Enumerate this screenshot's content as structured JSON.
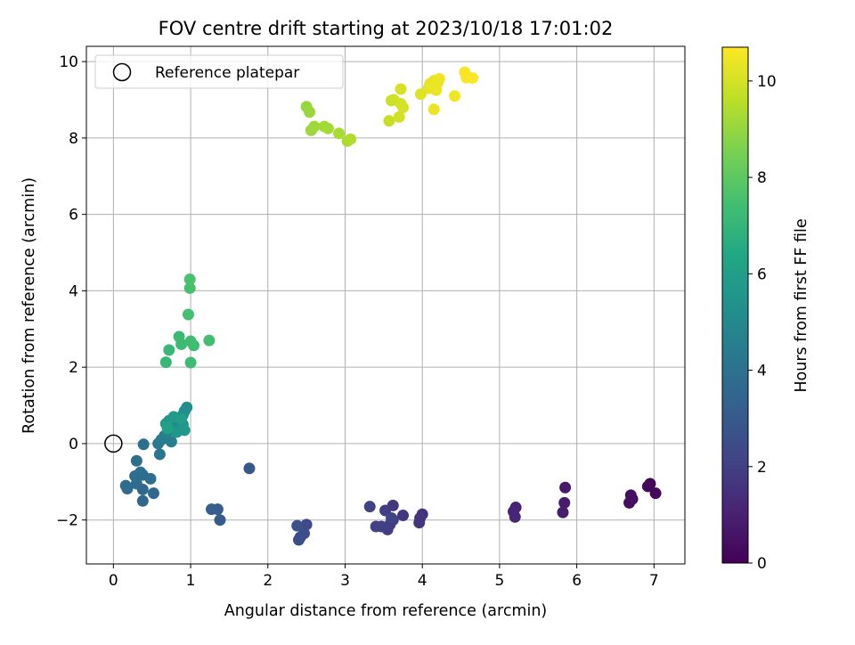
{
  "chart_data": {
    "type": "scatter",
    "title": "FOV centre drift starting at 2023/10/18 17:01:02",
    "xlabel": "Angular distance from reference (arcmin)",
    "ylabel": "Rotation from reference (arcmin)",
    "xlim": [
      -0.35,
      7.4
    ],
    "ylim": [
      -3.15,
      10.4
    ],
    "xticks": [
      0,
      1,
      2,
      3,
      4,
      5,
      6,
      7
    ],
    "yticks": [
      -2,
      0,
      2,
      4,
      6,
      8,
      10
    ],
    "grid": true,
    "legend": {
      "placement": "top-left",
      "entries": [
        {
          "label": "Reference platepar",
          "marker": "open-circle"
        }
      ]
    },
    "reference_point": {
      "x": 0,
      "y": 0
    },
    "colorbar": {
      "label": "Hours from first FF file",
      "colormap": "viridis",
      "range": [
        0,
        10.7
      ],
      "ticks": [
        0,
        2,
        4,
        6,
        8,
        10
      ]
    },
    "points": [
      {
        "x": 6.95,
        "y": -1.05,
        "t": 0.1
      },
      {
        "x": 7.02,
        "y": -1.3,
        "t": 0.2
      },
      {
        "x": 6.92,
        "y": -1.12,
        "t": 0.25
      },
      {
        "x": 6.72,
        "y": -1.45,
        "t": 0.35
      },
      {
        "x": 6.68,
        "y": -1.55,
        "t": 0.4
      },
      {
        "x": 6.7,
        "y": -1.35,
        "t": 0.45
      },
      {
        "x": 5.85,
        "y": -1.15,
        "t": 0.75
      },
      {
        "x": 5.84,
        "y": -1.55,
        "t": 0.8
      },
      {
        "x": 5.82,
        "y": -1.8,
        "t": 0.85
      },
      {
        "x": 5.21,
        "y": -1.67,
        "t": 1.05
      },
      {
        "x": 5.18,
        "y": -1.78,
        "t": 1.1
      },
      {
        "x": 5.2,
        "y": -1.92,
        "t": 1.15
      },
      {
        "x": 4.0,
        "y": -1.85,
        "t": 1.55
      },
      {
        "x": 3.97,
        "y": -1.95,
        "t": 1.6
      },
      {
        "x": 3.96,
        "y": -2.07,
        "t": 1.65
      },
      {
        "x": 3.75,
        "y": -1.88,
        "t": 1.7
      },
      {
        "x": 3.62,
        "y": -1.62,
        "t": 1.75
      },
      {
        "x": 3.62,
        "y": -2.0,
        "t": 1.8
      },
      {
        "x": 3.58,
        "y": -2.12,
        "t": 1.85
      },
      {
        "x": 3.55,
        "y": -2.25,
        "t": 1.9
      },
      {
        "x": 3.52,
        "y": -1.75,
        "t": 1.95
      },
      {
        "x": 3.47,
        "y": -2.17,
        "t": 2.0
      },
      {
        "x": 3.4,
        "y": -2.17,
        "t": 2.05
      },
      {
        "x": 3.32,
        "y": -1.65,
        "t": 2.1
      },
      {
        "x": 3.6,
        "y": -1.95,
        "t": 2.12
      },
      {
        "x": 2.5,
        "y": -2.12,
        "t": 2.4
      },
      {
        "x": 2.47,
        "y": -2.35,
        "t": 2.45
      },
      {
        "x": 2.42,
        "y": -2.45,
        "t": 2.5
      },
      {
        "x": 2.4,
        "y": -2.52,
        "t": 2.55
      },
      {
        "x": 2.38,
        "y": -2.15,
        "t": 2.6
      },
      {
        "x": 1.76,
        "y": -0.65,
        "t": 2.95
      },
      {
        "x": 1.38,
        "y": -2.0,
        "t": 3.1
      },
      {
        "x": 1.35,
        "y": -1.72,
        "t": 3.15
      },
      {
        "x": 1.27,
        "y": -1.72,
        "t": 3.2
      },
      {
        "x": 0.38,
        "y": -1.5,
        "t": 3.55
      },
      {
        "x": 0.52,
        "y": -1.3,
        "t": 3.6
      },
      {
        "x": 0.38,
        "y": -1.2,
        "t": 3.65
      },
      {
        "x": 0.3,
        "y": -1.05,
        "t": 3.7
      },
      {
        "x": 0.18,
        "y": -1.18,
        "t": 3.72
      },
      {
        "x": 0.16,
        "y": -1.1,
        "t": 3.75
      },
      {
        "x": 0.28,
        "y": -0.85,
        "t": 3.8
      },
      {
        "x": 0.38,
        "y": -0.82,
        "t": 3.82
      },
      {
        "x": 0.35,
        "y": -0.75,
        "t": 3.85
      },
      {
        "x": 0.48,
        "y": -0.92,
        "t": 3.88
      },
      {
        "x": 0.3,
        "y": -0.45,
        "t": 3.9
      },
      {
        "x": 0.39,
        "y": -0.02,
        "t": 3.95
      },
      {
        "x": 0.6,
        "y": -0.28,
        "t": 4.2
      },
      {
        "x": 0.58,
        "y": 0.0,
        "t": 4.3
      },
      {
        "x": 0.62,
        "y": 0.1,
        "t": 4.4
      },
      {
        "x": 0.66,
        "y": 0.2,
        "t": 4.5
      },
      {
        "x": 0.75,
        "y": 0.05,
        "t": 4.6
      },
      {
        "x": 0.7,
        "y": 0.3,
        "t": 4.7
      },
      {
        "x": 0.78,
        "y": 0.45,
        "t": 4.8
      },
      {
        "x": 0.82,
        "y": 0.6,
        "t": 4.9
      },
      {
        "x": 0.85,
        "y": 0.4,
        "t": 5.0
      },
      {
        "x": 0.9,
        "y": 0.75,
        "t": 5.1
      },
      {
        "x": 0.92,
        "y": 0.85,
        "t": 5.2
      },
      {
        "x": 0.95,
        "y": 0.95,
        "t": 5.3
      },
      {
        "x": 0.72,
        "y": 0.6,
        "t": 5.4
      },
      {
        "x": 0.9,
        "y": 0.5,
        "t": 5.5
      },
      {
        "x": 0.82,
        "y": 0.3,
        "t": 5.6
      },
      {
        "x": 0.92,
        "y": 0.35,
        "t": 5.7
      },
      {
        "x": 0.68,
        "y": 0.52,
        "t": 5.75
      },
      {
        "x": 0.78,
        "y": 0.7,
        "t": 5.8
      },
      {
        "x": 0.88,
        "y": 0.65,
        "t": 5.9
      },
      {
        "x": 0.7,
        "y": 0.4,
        "t": 6.0
      },
      {
        "x": 0.68,
        "y": 2.13,
        "t": 7.1
      },
      {
        "x": 0.72,
        "y": 2.45,
        "t": 7.15
      },
      {
        "x": 0.85,
        "y": 2.8,
        "t": 7.2
      },
      {
        "x": 0.88,
        "y": 2.6,
        "t": 7.25
      },
      {
        "x": 1.0,
        "y": 2.12,
        "t": 7.3
      },
      {
        "x": 1.0,
        "y": 2.68,
        "t": 7.35
      },
      {
        "x": 1.04,
        "y": 2.57,
        "t": 7.4
      },
      {
        "x": 1.24,
        "y": 2.7,
        "t": 7.45
      },
      {
        "x": 0.97,
        "y": 3.38,
        "t": 7.5
      },
      {
        "x": 0.99,
        "y": 4.07,
        "t": 7.55
      },
      {
        "x": 0.99,
        "y": 4.3,
        "t": 7.6
      },
      {
        "x": 2.5,
        "y": 8.82,
        "t": 9.0
      },
      {
        "x": 2.54,
        "y": 8.68,
        "t": 9.05
      },
      {
        "x": 2.56,
        "y": 8.2,
        "t": 9.1
      },
      {
        "x": 2.6,
        "y": 8.3,
        "t": 9.15
      },
      {
        "x": 2.73,
        "y": 8.3,
        "t": 9.2
      },
      {
        "x": 2.78,
        "y": 8.25,
        "t": 9.25
      },
      {
        "x": 2.92,
        "y": 8.12,
        "t": 9.3
      },
      {
        "x": 3.03,
        "y": 7.92,
        "t": 9.35
      },
      {
        "x": 3.07,
        "y": 7.97,
        "t": 9.4
      },
      {
        "x": 3.57,
        "y": 8.45,
        "t": 9.8
      },
      {
        "x": 3.6,
        "y": 8.98,
        "t": 9.85
      },
      {
        "x": 3.63,
        "y": 9.0,
        "t": 9.9
      },
      {
        "x": 3.7,
        "y": 8.55,
        "t": 9.95
      },
      {
        "x": 3.72,
        "y": 8.9,
        "t": 10.0
      },
      {
        "x": 3.75,
        "y": 8.8,
        "t": 10.05
      },
      {
        "x": 3.72,
        "y": 9.28,
        "t": 10.05
      },
      {
        "x": 3.98,
        "y": 9.15,
        "t": 10.2
      },
      {
        "x": 4.08,
        "y": 9.3,
        "t": 10.25
      },
      {
        "x": 4.1,
        "y": 9.42,
        "t": 10.3
      },
      {
        "x": 4.15,
        "y": 9.5,
        "t": 10.35
      },
      {
        "x": 4.18,
        "y": 9.25,
        "t": 10.4
      },
      {
        "x": 4.22,
        "y": 9.55,
        "t": 10.45
      },
      {
        "x": 4.15,
        "y": 8.75,
        "t": 10.4
      },
      {
        "x": 4.42,
        "y": 9.1,
        "t": 10.5
      },
      {
        "x": 4.55,
        "y": 9.72,
        "t": 10.6
      },
      {
        "x": 4.57,
        "y": 9.58,
        "t": 10.62
      },
      {
        "x": 4.65,
        "y": 9.57,
        "t": 10.65
      },
      {
        "x": 4.12,
        "y": 9.35,
        "t": 10.38
      },
      {
        "x": 4.2,
        "y": 9.45,
        "t": 10.42
      }
    ]
  }
}
